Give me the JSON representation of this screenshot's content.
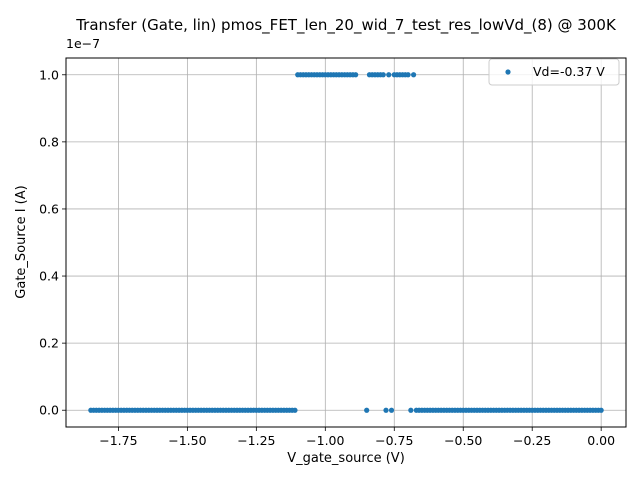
{
  "chart_data": {
    "type": "scatter",
    "title": "Transfer (Gate, lin) pmos_FET_len_20_wid_7_test_res_lowVd_(8) @ 300K",
    "xlabel": "V_gate_source (V)",
    "ylabel": "Gate_Source I (A)",
    "y_multiplier_label": "1e−7",
    "y_scale": 1e-07,
    "xlim": [
      -1.94,
      0.09
    ],
    "ylim": [
      -0.05,
      1.05
    ],
    "x_ticks": [
      -1.75,
      -1.5,
      -1.25,
      -1.0,
      -0.75,
      -0.5,
      -0.25,
      0.0
    ],
    "x_tick_labels": [
      "−1.75",
      "−1.50",
      "−1.25",
      "−1.00",
      "−0.75",
      "−0.50",
      "−0.25",
      "0.00"
    ],
    "y_ticks": [
      0.0,
      0.2,
      0.4,
      0.6,
      0.8,
      1.0
    ],
    "y_tick_labels": [
      "0.0",
      "0.2",
      "0.4",
      "0.6",
      "0.8",
      "1.0"
    ],
    "grid": true,
    "legend_position": "top-right",
    "marker_color": "#1f77b4",
    "series": [
      {
        "name": "Vd=-0.37 V",
        "segments": [
          {
            "x_start": -1.85,
            "x_end": -1.11,
            "step": 0.01,
            "y": 0.0
          },
          {
            "x_start": -1.1,
            "x_end": -0.89,
            "step": 0.01,
            "y": 1.0
          },
          {
            "x_start": -0.85,
            "x_end": -0.85,
            "step": 0.01,
            "y": 0.0
          },
          {
            "x_start": -0.84,
            "x_end": -0.79,
            "step": 0.01,
            "y": 1.0
          },
          {
            "x_start": -0.78,
            "x_end": -0.78,
            "step": 0.01,
            "y": 0.0
          },
          {
            "x_start": -0.77,
            "x_end": -0.77,
            "step": 0.01,
            "y": 1.0
          },
          {
            "x_start": -0.76,
            "x_end": -0.76,
            "step": 0.01,
            "y": 0.0
          },
          {
            "x_start": -0.75,
            "x_end": -0.7,
            "step": 0.01,
            "y": 1.0
          },
          {
            "x_start": -0.69,
            "x_end": -0.69,
            "step": 0.01,
            "y": 0.0
          },
          {
            "x_start": -0.68,
            "x_end": -0.68,
            "step": 0.01,
            "y": 1.0
          },
          {
            "x_start": -0.67,
            "x_end": 0.0,
            "step": 0.01,
            "y": 0.0
          }
        ]
      }
    ]
  }
}
